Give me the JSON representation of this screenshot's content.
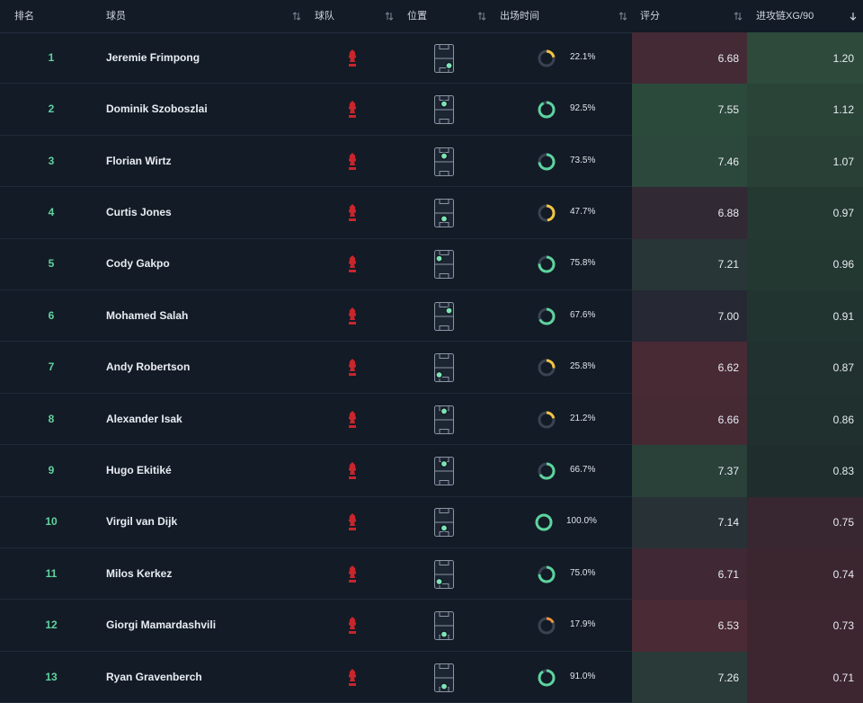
{
  "table": {
    "headers": [
      "排名",
      "球员",
      "球队",
      "位置",
      "出场时间",
      "评分",
      "进攻链XG/90"
    ],
    "rows": [
      {
        "rank": 1,
        "player": "Jeremie Frimpong",
        "minutes": {
          "value": 22.1,
          "label": "22.1%"
        },
        "rating": "6.68",
        "xg": "1.20"
      },
      {
        "rank": 2,
        "player": "Dominik Szoboszlai",
        "minutes": {
          "value": 92.5,
          "label": "92.5%"
        },
        "rating": "7.55",
        "xg": "1.12"
      },
      {
        "rank": 3,
        "player": "Florian Wirtz",
        "minutes": {
          "value": 73.5,
          "label": "73.5%"
        },
        "rating": "7.46",
        "xg": "1.07"
      },
      {
        "rank": 4,
        "player": "Curtis Jones",
        "minutes": {
          "value": 47.7,
          "label": "47.7%"
        },
        "rating": "6.88",
        "xg": "0.97"
      },
      {
        "rank": 5,
        "player": "Cody Gakpo",
        "minutes": {
          "value": 75.8,
          "label": "75.8%"
        },
        "rating": "7.21",
        "xg": "0.96"
      },
      {
        "rank": 6,
        "player": "Mohamed Salah",
        "minutes": {
          "value": 67.6,
          "label": "67.6%"
        },
        "rating": "7.00",
        "xg": "0.91"
      },
      {
        "rank": 7,
        "player": "Andy Robertson",
        "minutes": {
          "value": 25.8,
          "label": "25.8%"
        },
        "rating": "6.62",
        "xg": "0.87"
      },
      {
        "rank": 8,
        "player": "Alexander Isak",
        "minutes": {
          "value": 21.2,
          "label": "21.2%"
        },
        "rating": "6.66",
        "xg": "0.86"
      },
      {
        "rank": 9,
        "player": "Hugo Ekitiké",
        "minutes": {
          "value": 66.7,
          "label": "66.7%"
        },
        "rating": "7.37",
        "xg": "0.83"
      },
      {
        "rank": 10,
        "player": "Virgil van Dijk",
        "minutes": {
          "value": 100.0,
          "label": "100.0%"
        },
        "rating": "7.14",
        "xg": "0.75"
      },
      {
        "rank": 11,
        "player": "Milos Kerkez",
        "minutes": {
          "value": 75.0,
          "label": "75.0%"
        },
        "rating": "6.71",
        "xg": "0.74"
      },
      {
        "rank": 12,
        "player": "Giorgi Mamardashvili",
        "minutes": {
          "value": 17.9,
          "label": "17.9%"
        },
        "rating": "6.53",
        "xg": "0.73"
      },
      {
        "rank": 13,
        "player": "Ryan Gravenberch",
        "minutes": {
          "value": 91.0,
          "label": "91.0%"
        },
        "rating": "7.26",
        "xg": "0.71"
      }
    ]
  }
}
